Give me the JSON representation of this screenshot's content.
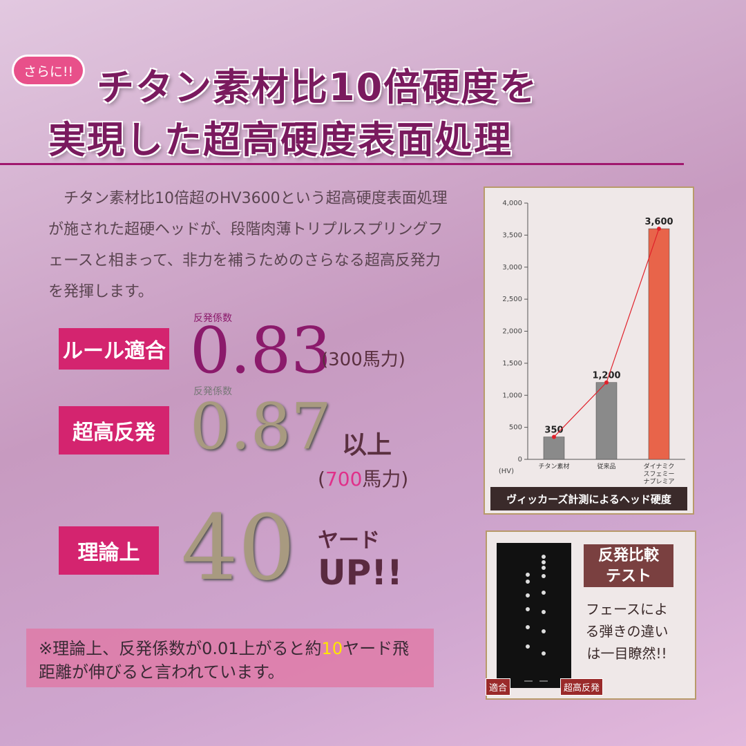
{
  "badge": "さらに!!",
  "headline": [
    "チタン素材比10倍硬度を",
    "実現した超高硬度表面処理"
  ],
  "body": "チタン素材比10倍超のHV3600という超高硬度表面処理が施された超硬ヘッドが、段階肉薄トリプルスプリングフェースと相まって、非力を補うためのさらなる超高反発力を発揮します。",
  "specs": [
    {
      "label": "ルール適合",
      "caption": "反発係数",
      "value": "0.83",
      "suffix": "(300馬力)"
    },
    {
      "label": "超高反発",
      "caption": "反発係数",
      "value": "0.87",
      "suffix": "以上",
      "sub": [
        "(",
        "700",
        "馬力)"
      ]
    },
    {
      "label": "理論上",
      "value": "40",
      "suffix": "ヤード",
      "suffix2": "UP!!"
    }
  ],
  "note": [
    "※理論上、反発係数が0.01上がると約",
    "10",
    "ヤード飛距離が伸びると言われています。"
  ],
  "chart_data": {
    "type": "bar",
    "caption": "ヴィッカーズ計測によるヘッド硬度",
    "unit": "(HV)",
    "categories": [
      "チタン素材",
      "従来品",
      "ダイナミクスフェミーナプレミア"
    ],
    "values": [
      350,
      1200,
      3600
    ],
    "value_labels": [
      "350",
      "1,200",
      "3,600"
    ],
    "colors": [
      "#8a8a8a",
      "#8a8a8a",
      "#e8644a"
    ],
    "line_color": "#e0202a",
    "ylim": [
      0,
      4000
    ],
    "yticks": [
      0,
      500,
      {
        "value": 1000,
        "label": "1,000"
      },
      {
        "value": 1500,
        "label": "1,500"
      },
      {
        "value": 2000,
        "label": "2,000"
      },
      {
        "value": 2500,
        "label": "2,500"
      },
      {
        "value": 3000,
        "label": "3,000"
      },
      {
        "value": 3500,
        "label": "3,500"
      },
      {
        "value": 4000,
        "label": "4,000"
      }
    ]
  },
  "test": {
    "title": "反発比較テスト",
    "description": "フェースによる弾きの違いは一目瞭然!!",
    "labels": [
      "適合",
      "超高反発"
    ]
  }
}
